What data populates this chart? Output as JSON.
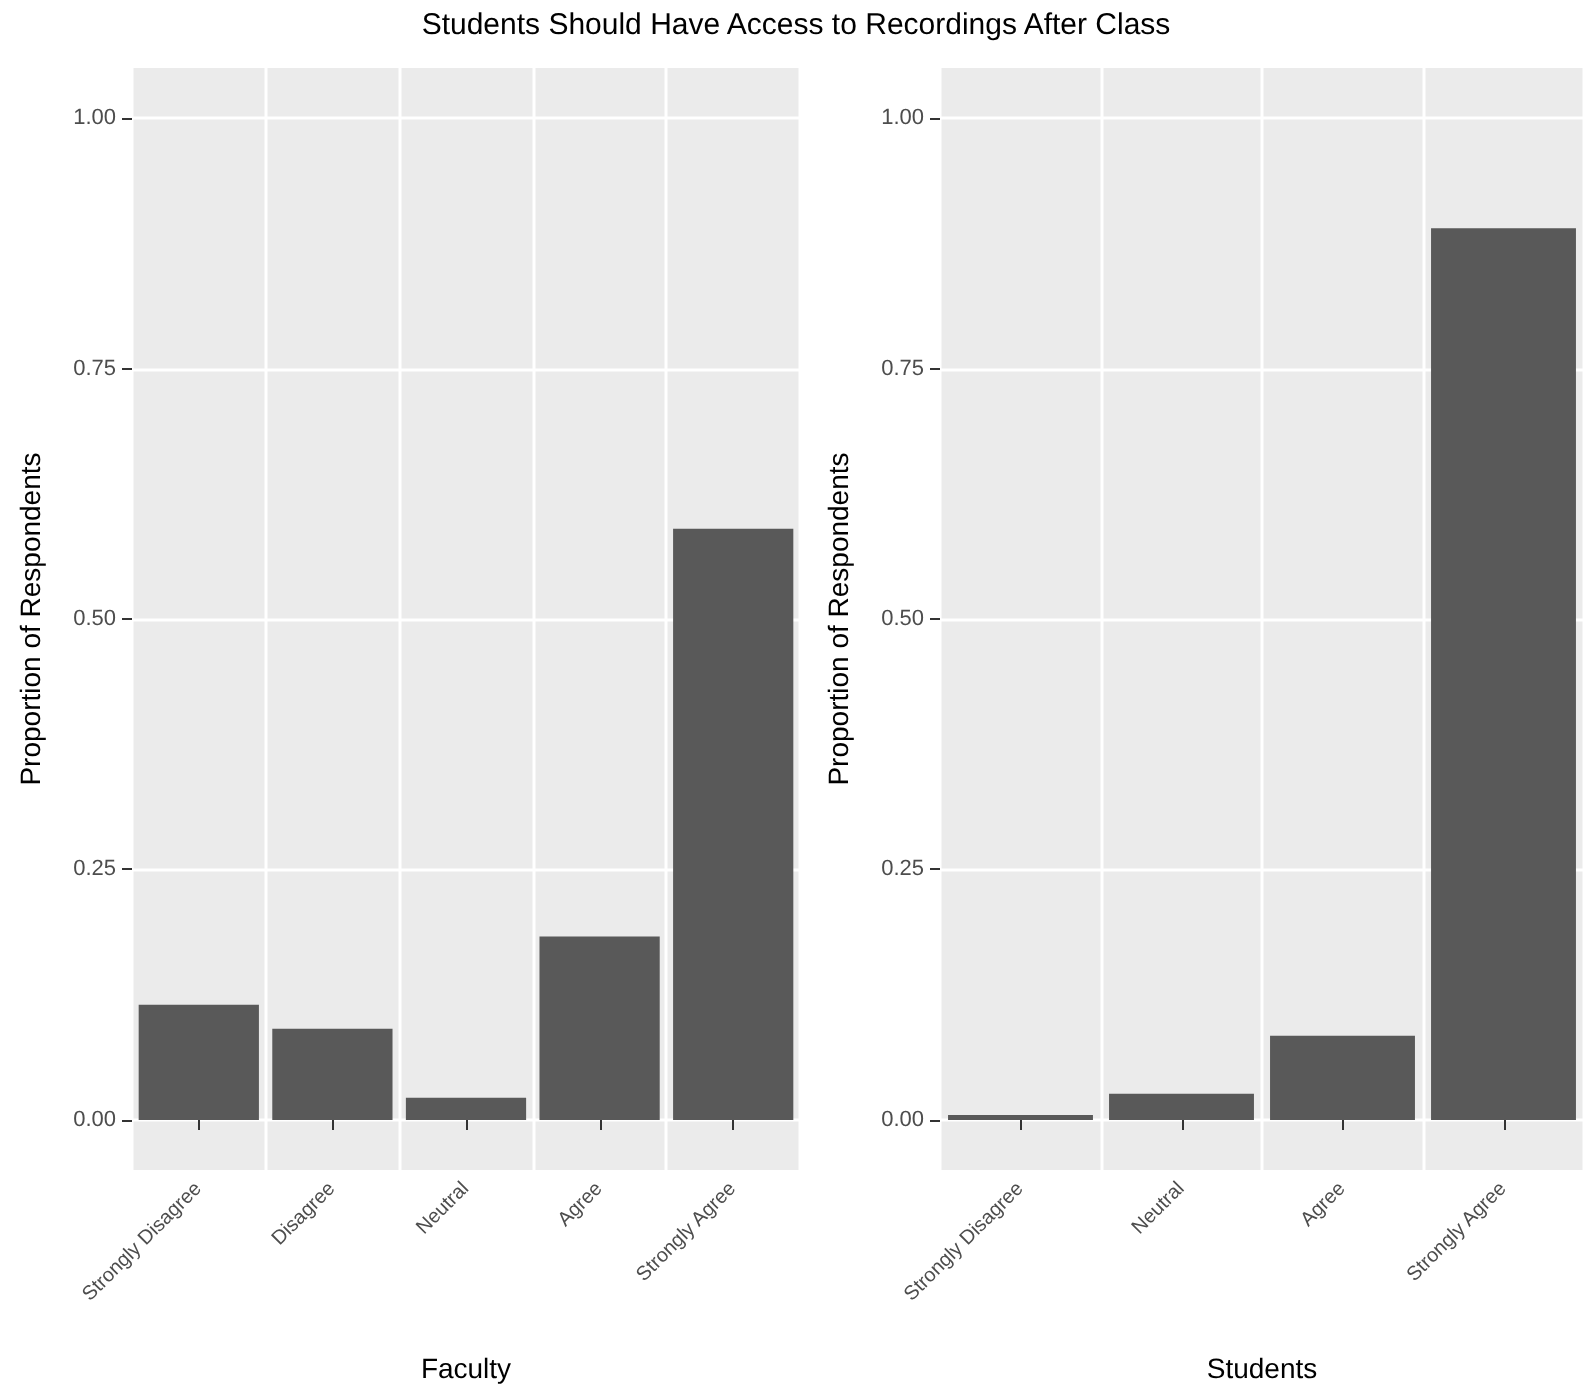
{
  "chart_data": [
    {
      "type": "bar",
      "title": "Students Should Have Access to Recordings After Class",
      "xlabel": "Faculty",
      "ylabel": "Proportion of Respondents",
      "categories": [
        "Strongly Disagree",
        "Disagree",
        "Neutral",
        "Agree",
        "Strongly Agree"
      ],
      "values": [
        0.115,
        0.091,
        0.022,
        0.183,
        0.59
      ],
      "color": "#595959",
      "ylim": [
        -0.05,
        1.05
      ],
      "yticks": [
        {
          "value": 0,
          "label": "0.00"
        },
        {
          "value": 0.25,
          "label": "0.25"
        },
        {
          "value": 0.5,
          "label": "0.50"
        },
        {
          "value": 0.75,
          "label": "0.75"
        },
        {
          "value": 1,
          "label": "1.00"
        }
      ],
      "grid": true
    },
    {
      "type": "bar",
      "xlabel": "Students",
      "ylabel": "Proportion of Respondents",
      "categories": [
        "Strongly Disagree",
        "Neutral",
        "Agree",
        "Strongly Agree"
      ],
      "values": [
        0.005,
        0.026,
        0.084,
        0.89
      ],
      "color": "#595959",
      "ylim": [
        -0.05,
        1.05
      ],
      "yticks": [
        {
          "value": 0,
          "label": "0.00"
        },
        {
          "value": 0.25,
          "label": "0.25"
        },
        {
          "value": 0.5,
          "label": "0.50"
        },
        {
          "value": 0.75,
          "label": "0.75"
        },
        {
          "value": 1,
          "label": "1.00"
        }
      ],
      "grid": true
    }
  ]
}
